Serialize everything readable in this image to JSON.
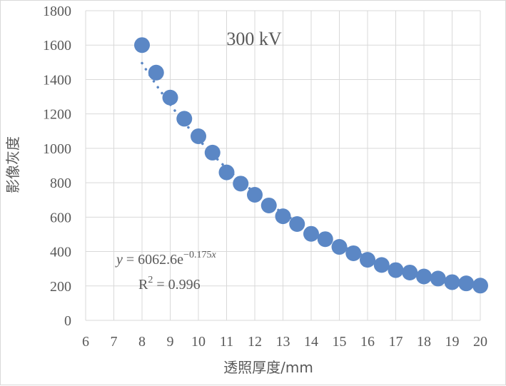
{
  "chart_data": {
    "type": "scatter",
    "annotation": "300 kV",
    "xlabel": "透照厚度/mm",
    "ylabel": "影像灰度",
    "xlim": [
      6,
      20
    ],
    "ylim": [
      0,
      1800
    ],
    "x_ticks": [
      "6",
      "7",
      "8",
      "9",
      "10",
      "11",
      "12",
      "13",
      "14",
      "15",
      "16",
      "17",
      "18",
      "19",
      "20"
    ],
    "y_ticks": [
      "0",
      "200",
      "400",
      "600",
      "800",
      "1000",
      "1200",
      "1400",
      "1600",
      "1800"
    ],
    "grid": true,
    "trendline": {
      "type": "exponential",
      "a": 6062.6,
      "b": -0.175,
      "equation_lhs": "y",
      "equation_mid": " = 6062.6e",
      "equation_exp": "−0.175",
      "equation_var": "x",
      "r2_label": "R",
      "r2_sup": "2",
      "r2_value": " = 0.996"
    },
    "series": [
      {
        "color": "#5b87c5",
        "points": [
          {
            "x": 8.0,
            "y": 1600
          },
          {
            "x": 8.5,
            "y": 1440
          },
          {
            "x": 9.0,
            "y": 1295
          },
          {
            "x": 9.5,
            "y": 1172
          },
          {
            "x": 10.0,
            "y": 1070
          },
          {
            "x": 10.5,
            "y": 975
          },
          {
            "x": 11.0,
            "y": 860
          },
          {
            "x": 11.5,
            "y": 795
          },
          {
            "x": 12.0,
            "y": 730
          },
          {
            "x": 12.5,
            "y": 668
          },
          {
            "x": 13.0,
            "y": 605
          },
          {
            "x": 13.5,
            "y": 560
          },
          {
            "x": 14.0,
            "y": 503
          },
          {
            "x": 14.5,
            "y": 472
          },
          {
            "x": 15.0,
            "y": 427
          },
          {
            "x": 15.5,
            "y": 390
          },
          {
            "x": 16.0,
            "y": 352
          },
          {
            "x": 16.5,
            "y": 322
          },
          {
            "x": 17.0,
            "y": 292
          },
          {
            "x": 17.5,
            "y": 278
          },
          {
            "x": 18.0,
            "y": 255
          },
          {
            "x": 18.5,
            "y": 243
          },
          {
            "x": 19.0,
            "y": 222
          },
          {
            "x": 19.5,
            "y": 215
          },
          {
            "x": 20.0,
            "y": 202
          }
        ]
      }
    ]
  }
}
